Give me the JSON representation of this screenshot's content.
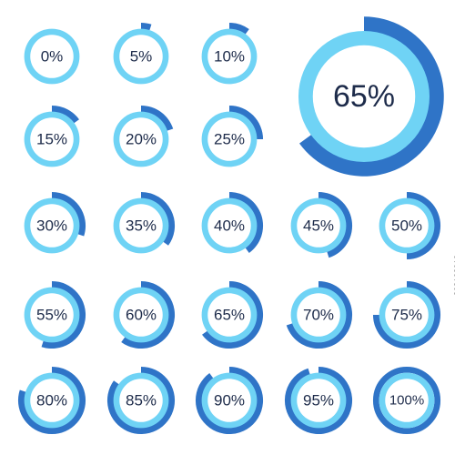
{
  "colors": {
    "outer_arc": "#2f74c7",
    "light_ring": "#6fd3f5",
    "inner_disc": "#ffffff",
    "label": "#1d2b4a"
  },
  "watermark_id": "208108913",
  "feature": {
    "label": "65%",
    "value": 65
  },
  "items": [
    {
      "label": "0%",
      "value": 0
    },
    {
      "label": "5%",
      "value": 5
    },
    {
      "label": "10%",
      "value": 10
    },
    {
      "label": "15%",
      "value": 15
    },
    {
      "label": "20%",
      "value": 20
    },
    {
      "label": "25%",
      "value": 25
    },
    {
      "label": "30%",
      "value": 30
    },
    {
      "label": "35%",
      "value": 35
    },
    {
      "label": "40%",
      "value": 40
    },
    {
      "label": "45%",
      "value": 45
    },
    {
      "label": "50%",
      "value": 50
    },
    {
      "label": "55%",
      "value": 55
    },
    {
      "label": "60%",
      "value": 60
    },
    {
      "label": "65%",
      "value": 65
    },
    {
      "label": "70%",
      "value": 70
    },
    {
      "label": "75%",
      "value": 75
    },
    {
      "label": "80%",
      "value": 80
    },
    {
      "label": "85%",
      "value": 85
    },
    {
      "label": "90%",
      "value": 90
    },
    {
      "label": "95%",
      "value": 95
    },
    {
      "label": "100%",
      "value": 100
    }
  ]
}
